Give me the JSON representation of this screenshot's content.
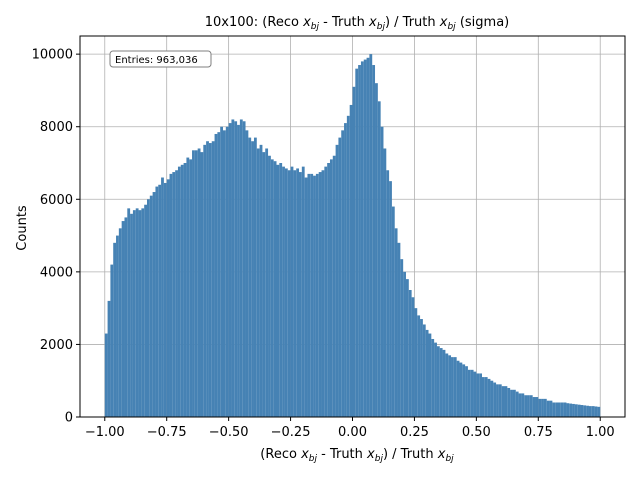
{
  "chart_data": {
    "type": "bar",
    "title": {
      "prefix": "10x100: (Reco ",
      "var1": "x",
      "var1_sub": "bj",
      "mid": " - Truth ",
      "var2": "x",
      "var2_sub": "bj",
      "after_close": ") / Truth ",
      "var3": "x",
      "var3_sub": "bj",
      "suffix": " (sigma)"
    },
    "xlabel": {
      "prefix": "(Reco ",
      "var1": "x",
      "var1_sub": "bj",
      "mid": " - Truth ",
      "var2": "x",
      "var2_sub": "bj",
      "after_close": ") / Truth ",
      "var3": "x",
      "var3_sub": "bj"
    },
    "ylabel": "Counts",
    "entries_label": "Entries: 963,036",
    "xlim": [
      -1.1,
      1.1
    ],
    "ylim": [
      0,
      10500
    ],
    "x_ticks": [
      -1.0,
      -0.75,
      -0.5,
      -0.25,
      0.0,
      0.25,
      0.5,
      0.75,
      1.0
    ],
    "x_tick_labels": [
      "−1.00",
      "−0.75",
      "−0.50",
      "−0.25",
      "0.00",
      "0.25",
      "0.50",
      "0.75",
      "1.00"
    ],
    "y_ticks": [
      0,
      2000,
      4000,
      6000,
      8000,
      10000
    ],
    "y_tick_labels": [
      "0",
      "2000",
      "4000",
      "6000",
      "8000",
      "10000"
    ],
    "grid": true,
    "bin_range": [
      -1.0,
      1.0
    ],
    "bar_color": "#4682b4",
    "values": [
      2300,
      3200,
      4200,
      4800,
      5000,
      5200,
      5400,
      5500,
      5750,
      5600,
      5700,
      5750,
      5700,
      5750,
      5850,
      6000,
      6100,
      6200,
      6350,
      6400,
      6600,
      6450,
      6550,
      6700,
      6750,
      6800,
      6900,
      6950,
      7000,
      7150,
      7100,
      7350,
      7350,
      7400,
      7300,
      7500,
      7600,
      7550,
      7600,
      7800,
      7850,
      8000,
      7900,
      8000,
      8100,
      8200,
      8150,
      8050,
      8200,
      8150,
      7900,
      7700,
      7600,
      7700,
      7400,
      7500,
      7300,
      7400,
      7200,
      7100,
      7050,
      6950,
      7000,
      6900,
      6850,
      6800,
      6900,
      6800,
      6850,
      6750,
      6900,
      6600,
      6700,
      6700,
      6650,
      6700,
      6750,
      6800,
      6900,
      7000,
      7100,
      7200,
      7500,
      7700,
      7900,
      8100,
      8300,
      8600,
      9100,
      9600,
      9700,
      9800,
      9850,
      9900,
      10000,
      9700,
      9200,
      8700,
      8000,
      7400,
      6800,
      6500,
      5800,
      5200,
      4800,
      4350,
      4000,
      3800,
      3500,
      3300,
      3000,
      2800,
      2700,
      2550,
      2400,
      2300,
      2150,
      2050,
      1950,
      1900,
      1850,
      1750,
      1700,
      1650,
      1650,
      1550,
      1500,
      1450,
      1400,
      1300,
      1300,
      1250,
      1200,
      1200,
      1100,
      1100,
      1050,
      1000,
      950,
      900,
      900,
      850,
      850,
      800,
      750,
      750,
      700,
      650,
      650,
      600,
      600,
      600,
      550,
      550,
      500,
      500,
      500,
      450,
      450,
      400,
      400,
      400,
      400,
      400,
      380,
      370,
      360,
      350,
      340,
      330,
      320,
      310,
      300,
      300,
      290,
      280
    ]
  }
}
